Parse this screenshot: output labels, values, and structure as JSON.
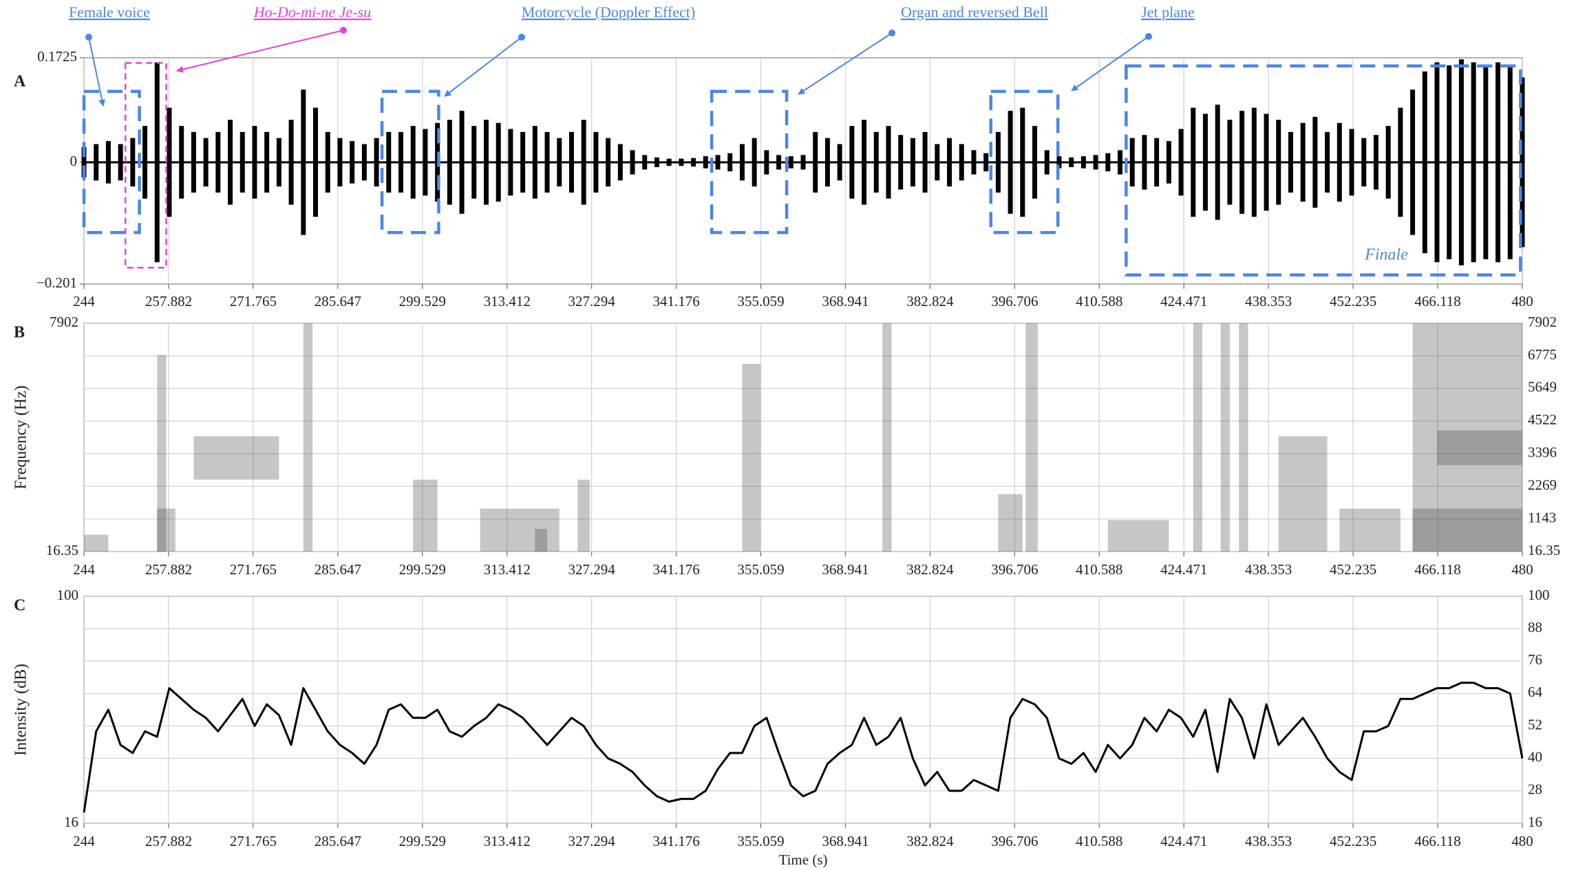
{
  "chart_data": [
    {
      "type": "waveform",
      "label": "A",
      "xlim": [
        244,
        480
      ],
      "xticks": [
        244,
        257.882,
        271.765,
        285.647,
        299.529,
        313.412,
        327.294,
        341.176,
        355.059,
        368.941,
        382.824,
        396.706,
        410.588,
        424.471,
        438.353,
        452.235,
        466.118,
        480
      ],
      "ylim": [
        -0.201,
        0.1725
      ],
      "yticks": [
        {
          "value": -0.201,
          "label": "−0.201"
        },
        0,
        0.1725
      ],
      "grid": true,
      "color": "#000000",
      "x": [
        244,
        246,
        248,
        250,
        252,
        254,
        256,
        258,
        260,
        262,
        264,
        266,
        268,
        270,
        272,
        274,
        276,
        278,
        280,
        282,
        284,
        286,
        288,
        290,
        292,
        294,
        296,
        298,
        300,
        302,
        304,
        306,
        308,
        310,
        312,
        314,
        316,
        318,
        320,
        322,
        324,
        326,
        328,
        330,
        332,
        334,
        336,
        338,
        340,
        342,
        344,
        346,
        348,
        350,
        352,
        354,
        356,
        358,
        360,
        362,
        364,
        366,
        368,
        370,
        372,
        374,
        376,
        378,
        380,
        382,
        384,
        386,
        388,
        390,
        392,
        394,
        396,
        398,
        400,
        402,
        404,
        406,
        408,
        410,
        412,
        414,
        416,
        418,
        420,
        422,
        424,
        426,
        428,
        430,
        432,
        434,
        436,
        438,
        440,
        442,
        444,
        446,
        448,
        450,
        452,
        454,
        456,
        458,
        460,
        462,
        464,
        466,
        468,
        470,
        472,
        474,
        476,
        478,
        480
      ],
      "values": [
        0.025,
        0.03,
        0.035,
        0.03,
        0.04,
        0.06,
        0.165,
        0.09,
        0.06,
        0.05,
        0.04,
        0.05,
        0.07,
        0.05,
        0.06,
        0.05,
        0.04,
        0.07,
        0.12,
        0.09,
        0.05,
        0.04,
        0.035,
        0.03,
        0.04,
        0.05,
        0.05,
        0.06,
        0.055,
        0.065,
        0.07,
        0.085,
        0.06,
        0.07,
        0.065,
        0.055,
        0.05,
        0.06,
        0.05,
        0.04,
        0.05,
        0.07,
        0.05,
        0.04,
        0.03,
        0.02,
        0.012,
        0.008,
        0.006,
        0.006,
        0.007,
        0.01,
        0.012,
        0.015,
        0.03,
        0.04,
        0.02,
        0.012,
        0.01,
        0.012,
        0.05,
        0.04,
        0.03,
        0.06,
        0.07,
        0.05,
        0.06,
        0.045,
        0.04,
        0.05,
        0.03,
        0.04,
        0.03,
        0.02,
        0.015,
        0.05,
        0.085,
        0.09,
        0.06,
        0.02,
        0.01,
        0.008,
        0.01,
        0.012,
        0.015,
        0.02,
        0.04,
        0.045,
        0.04,
        0.035,
        0.055,
        0.09,
        0.08,
        0.095,
        0.07,
        0.085,
        0.09,
        0.08,
        0.07,
        0.05,
        0.065,
        0.075,
        0.05,
        0.065,
        0.055,
        0.04,
        0.045,
        0.06,
        0.09,
        0.12,
        0.15,
        0.165,
        0.16,
        0.17,
        0.165,
        0.16,
        0.165,
        0.16,
        0.14
      ],
      "annotations": [
        {
          "text": "Female voice",
          "color": "#4a86e8",
          "italic": false,
          "x": [
            244,
            253.1
          ],
          "y": [
            -0.116,
            0.117
          ]
        },
        {
          "text": "Ho-Do-mi-ne Je-su",
          "color": "#e83ee0",
          "italic": true,
          "x": [
            250.8,
            257.5
          ],
          "y": [
            -0.174,
            0.164
          ]
        },
        {
          "text": "Motorcycle (Doppler Effect)",
          "color": "#4a86e8",
          "italic": false,
          "x": [
            292.9,
            302.2
          ],
          "y": [
            -0.116,
            0.117
          ]
        },
        {
          "text": "Organ and reversed Bell",
          "color": "#4a86e8",
          "italic": false,
          "x": [
            347,
            359.3
          ],
          "y": [
            -0.116,
            0.117
          ]
        },
        {
          "text": "Jet plane",
          "color": "#4a86e8",
          "italic": false,
          "x": [
            392.8,
            403.8
          ],
          "y": [
            -0.116,
            0.117
          ]
        },
        {
          "text": "Finale",
          "color": "#4a86e8",
          "italic": true,
          "x": [
            415,
            479.7
          ],
          "y": [
            -0.186,
            0.159
          ]
        }
      ]
    },
    {
      "type": "spectrogram",
      "label": "B",
      "ylabel": "Frequency (Hz)",
      "xlim": [
        244,
        480
      ],
      "xticks": [
        244,
        257.882,
        271.765,
        285.647,
        299.529,
        313.412,
        327.294,
        341.176,
        355.059,
        368.941,
        382.824,
        396.706,
        410.588,
        424.471,
        438.353,
        452.235,
        466.118,
        480
      ],
      "ylim": [
        16.35,
        7902
      ],
      "yticks": [
        16.35,
        1143,
        2269,
        3396,
        4522,
        5649,
        6775,
        7902
      ],
      "grid": true,
      "color": "#333333",
      "regions": [
        {
          "x": [
            244,
            248
          ],
          "y": [
            16.35,
            600
          ]
        },
        {
          "x": [
            256,
            257.5
          ],
          "y": [
            16.35,
            6800
          ]
        },
        {
          "x": [
            256,
            259
          ],
          "y": [
            16.35,
            1500
          ]
        },
        {
          "x": [
            262,
            276
          ],
          "y": [
            2500,
            4000
          ]
        },
        {
          "x": [
            280,
            281.5
          ],
          "y": [
            16.35,
            7902
          ]
        },
        {
          "x": [
            298,
            302
          ],
          "y": [
            16.35,
            2500
          ]
        },
        {
          "x": [
            309,
            322
          ],
          "y": [
            16.35,
            1500
          ]
        },
        {
          "x": [
            318,
            320
          ],
          "y": [
            16.35,
            800
          ]
        },
        {
          "x": [
            325,
            327
          ],
          "y": [
            16.35,
            2500
          ]
        },
        {
          "x": [
            352,
            355
          ],
          "y": [
            16.35,
            6500
          ]
        },
        {
          "x": [
            375,
            376.5
          ],
          "y": [
            16.35,
            7902
          ]
        },
        {
          "x": [
            394,
            398
          ],
          "y": [
            16.35,
            2000
          ]
        },
        {
          "x": [
            398.5,
            400.5
          ],
          "y": [
            16.35,
            7902
          ]
        },
        {
          "x": [
            412,
            422
          ],
          "y": [
            16.35,
            1100
          ]
        },
        {
          "x": [
            426,
            427.5
          ],
          "y": [
            16.35,
            7902
          ]
        },
        {
          "x": [
            430.5,
            432
          ],
          "y": [
            16.35,
            7902
          ]
        },
        {
          "x": [
            433.5,
            435
          ],
          "y": [
            16.35,
            7902
          ]
        },
        {
          "x": [
            440,
            448
          ],
          "y": [
            16.35,
            4000
          ]
        },
        {
          "x": [
            450,
            460
          ],
          "y": [
            16.35,
            1500
          ]
        },
        {
          "x": [
            462,
            480
          ],
          "y": [
            16.35,
            7902
          ]
        },
        {
          "x": [
            466,
            480
          ],
          "y": [
            3000,
            4200
          ]
        },
        {
          "x": [
            462,
            480
          ],
          "y": [
            16.35,
            1500
          ]
        }
      ]
    },
    {
      "type": "line",
      "label": "C",
      "ylabel": "Intensity (dB)",
      "xlabel": "Time (s)",
      "xlim": [
        244,
        480
      ],
      "xticks": [
        244,
        257.882,
        271.765,
        285.647,
        299.529,
        313.412,
        327.294,
        341.176,
        355.059,
        368.941,
        382.824,
        396.706,
        410.588,
        424.471,
        438.353,
        452.235,
        466.118,
        480
      ],
      "ylim": [
        16,
        100
      ],
      "yticks": [
        16,
        28,
        40,
        52,
        64,
        76,
        88,
        100
      ],
      "grid": true,
      "color": "#000000",
      "x": [
        244,
        246,
        248,
        250,
        252,
        254,
        256,
        258,
        260,
        262,
        264,
        266,
        268,
        270,
        272,
        274,
        276,
        278,
        280,
        282,
        284,
        286,
        288,
        290,
        292,
        294,
        296,
        298,
        300,
        302,
        304,
        306,
        308,
        310,
        312,
        314,
        316,
        318,
        320,
        322,
        324,
        326,
        328,
        330,
        332,
        334,
        336,
        338,
        340,
        342,
        344,
        346,
        348,
        350,
        352,
        354,
        356,
        358,
        360,
        362,
        364,
        366,
        368,
        370,
        372,
        374,
        376,
        378,
        380,
        382,
        384,
        386,
        388,
        390,
        392,
        394,
        396,
        398,
        400,
        402,
        404,
        406,
        408,
        410,
        412,
        414,
        416,
        418,
        420,
        422,
        424,
        426,
        428,
        430,
        432,
        434,
        436,
        438,
        440,
        442,
        444,
        446,
        448,
        450,
        452,
        454,
        456,
        458,
        460,
        462,
        464,
        466,
        468,
        470,
        472,
        474,
        476,
        478,
        480
      ],
      "values": [
        20,
        50,
        58,
        45,
        42,
        50,
        48,
        66,
        62,
        58,
        55,
        50,
        56,
        62,
        52,
        60,
        56,
        45,
        66,
        58,
        50,
        45,
        42,
        38,
        45,
        58,
        60,
        55,
        55,
        58,
        50,
        48,
        52,
        55,
        60,
        58,
        55,
        50,
        45,
        50,
        55,
        52,
        45,
        40,
        38,
        35,
        30,
        26,
        24,
        25,
        25,
        28,
        36,
        42,
        42,
        52,
        55,
        42,
        30,
        26,
        28,
        38,
        42,
        45,
        55,
        45,
        48,
        55,
        40,
        30,
        35,
        28,
        28,
        32,
        30,
        28,
        55,
        62,
        60,
        55,
        40,
        38,
        42,
        35,
        45,
        40,
        45,
        55,
        50,
        58,
        55,
        48,
        58,
        35,
        62,
        55,
        40,
        60,
        45,
        50,
        55,
        48,
        40,
        35,
        32,
        50,
        50,
        52,
        62,
        62,
        64,
        66,
        66,
        68,
        68,
        66,
        66,
        64,
        40
      ]
    }
  ]
}
